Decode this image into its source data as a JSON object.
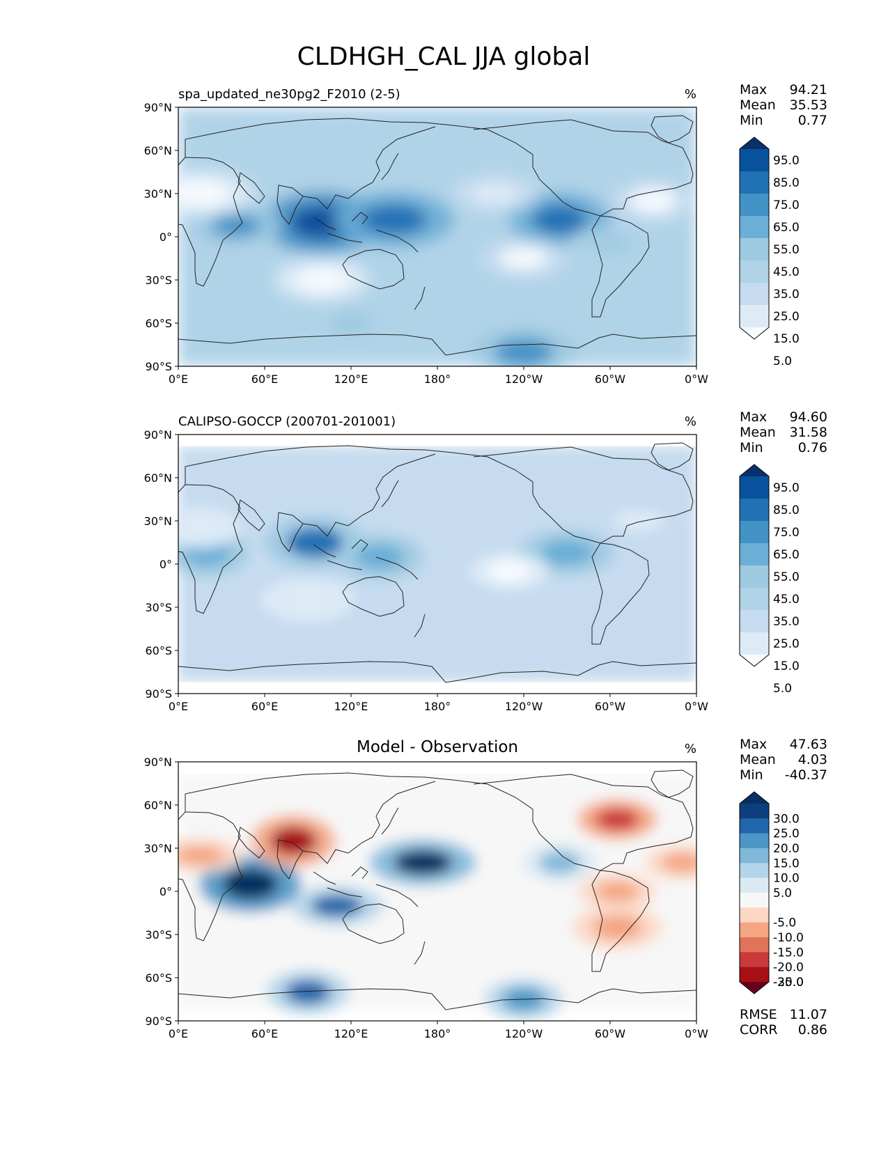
{
  "figure_title": "CLDHGH_CAL JJA global",
  "chart_data": [
    {
      "type": "heatmap",
      "title": "spa_updated_ne30pg2_F2010 (2-5)",
      "units": "%",
      "projection": "PlateCarree, central longitude 180",
      "xlim": [
        0,
        360
      ],
      "ylim": [
        -90,
        90
      ],
      "x_tick_labels": [
        "0°E",
        "60°E",
        "120°E",
        "180°",
        "120°W",
        "60°W",
        "0°W"
      ],
      "y_tick_labels": [
        "90°N",
        "60°N",
        "30°N",
        "0°",
        "30°S",
        "60°S",
        "90°S"
      ],
      "stats": {
        "max_label": "Max",
        "max": "94.21",
        "mean_label": "Mean",
        "mean": "35.53",
        "min_label": "Min",
        "min": "0.77"
      },
      "colorbar": {
        "extend": "both",
        "levels": [
          0,
          10,
          20,
          30,
          40,
          50,
          60,
          70,
          80,
          90,
          100
        ],
        "tick_labels": [
          "95.0",
          "85.0",
          "75.0",
          "65.0",
          "55.0",
          "45.0",
          "35.0",
          "25.0",
          "15.0",
          "5.0"
        ],
        "colors": [
          "#f7fbff",
          "#deebf7",
          "#c6dbef",
          "#b1d3e8",
          "#9ecae1",
          "#6baed6",
          "#4292c6",
          "#2171b5",
          "#08519c",
          "#08306b"
        ]
      },
      "field_features": [
        {
          "lon": 100,
          "lat": 10,
          "value": 88
        },
        {
          "lon": 150,
          "lat": 12,
          "value": 70
        },
        {
          "lon": 40,
          "lat": 8,
          "value": 65
        },
        {
          "lon": 265,
          "lat": 12,
          "value": 72
        },
        {
          "lon": 240,
          "lat": -15,
          "value": 8
        },
        {
          "lon": 100,
          "lat": -30,
          "value": 6
        },
        {
          "lon": 15,
          "lat": 30,
          "value": 6
        },
        {
          "lon": 330,
          "lat": 25,
          "value": 8
        },
        {
          "lon": 220,
          "lat": 30,
          "value": 10
        },
        {
          "lon": 240,
          "lat": -80,
          "value": 60
        },
        {
          "lon": 120,
          "lat": -60,
          "value": 45
        },
        {
          "lon": 300,
          "lat": -5,
          "value": 40
        }
      ],
      "background_value": 32
    },
    {
      "type": "heatmap",
      "title": "CALIPSO-GOCCP (200701-201001)",
      "units": "%",
      "projection": "PlateCarree, central longitude 180",
      "xlim": [
        0,
        360
      ],
      "ylim": [
        -90,
        90
      ],
      "data_lat_range": [
        -82,
        82
      ],
      "x_tick_labels": [
        "0°E",
        "60°E",
        "120°E",
        "180°",
        "120°W",
        "60°W",
        "0°W"
      ],
      "y_tick_labels": [
        "90°N",
        "60°N",
        "30°N",
        "0°",
        "30°S",
        "60°S",
        "90°S"
      ],
      "stats": {
        "max_label": "Max",
        "max": "94.60",
        "mean_label": "Mean",
        "mean": "31.58",
        "min_label": "Min",
        "min": "0.76"
      },
      "colorbar": {
        "extend": "both",
        "levels": [
          0,
          10,
          20,
          30,
          40,
          50,
          60,
          70,
          80,
          90,
          100
        ],
        "tick_labels": [
          "95.0",
          "85.0",
          "75.0",
          "65.0",
          "55.0",
          "45.0",
          "35.0",
          "25.0",
          "15.0",
          "5.0"
        ],
        "colors": [
          "#f7fbff",
          "#deebf7",
          "#c6dbef",
          "#b1d3e8",
          "#9ecae1",
          "#6baed6",
          "#4292c6",
          "#2171b5",
          "#08519c",
          "#08306b"
        ]
      },
      "field_features": [
        {
          "lon": 95,
          "lat": 15,
          "value": 70
        },
        {
          "lon": 140,
          "lat": 5,
          "value": 58
        },
        {
          "lon": 20,
          "lat": 8,
          "value": 55
        },
        {
          "lon": 270,
          "lat": 8,
          "value": 58
        },
        {
          "lon": 230,
          "lat": -5,
          "value": 6
        },
        {
          "lon": 90,
          "lat": -25,
          "value": 10
        },
        {
          "lon": 15,
          "lat": 25,
          "value": 10
        },
        {
          "lon": 320,
          "lat": 30,
          "value": 15
        }
      ],
      "background_value": 28
    },
    {
      "type": "heatmap",
      "title": "Model - Observation",
      "units": "%",
      "projection": "PlateCarree, central longitude 180",
      "xlim": [
        0,
        360
      ],
      "ylim": [
        -90,
        90
      ],
      "data_lat_range": [
        -82,
        82
      ],
      "x_tick_labels": [
        "0°E",
        "60°E",
        "120°E",
        "180°",
        "120°W",
        "60°W",
        "0°W"
      ],
      "y_tick_labels": [
        "90°N",
        "60°N",
        "30°N",
        "0°",
        "30°S",
        "60°S",
        "90°S"
      ],
      "stats": {
        "max_label": "Max",
        "max": "47.63",
        "mean_label": "Mean",
        "mean": "4.03",
        "min_label": "Min",
        "min": "-40.37"
      },
      "extra_stats": {
        "rmse_label": "RMSE",
        "rmse": "11.07",
        "corr_label": "CORR",
        "corr": "0.86"
      },
      "colorbar": {
        "extend": "both",
        "levels": [
          -35,
          -30,
          -25,
          -20,
          -15,
          -10,
          -5,
          5,
          10,
          15,
          20,
          25,
          30,
          35
        ],
        "tick_labels": [
          "30.0",
          "25.0",
          "20.0",
          "15.0",
          "10.0",
          "5.0",
          "-5.0",
          "-10.0",
          "-15.0",
          "-20.0",
          "-25.0",
          "-30.0"
        ],
        "colors": [
          "#67001f",
          "#a50f15",
          "#cb3a3a",
          "#e0735a",
          "#f4a582",
          "#fbd7c4",
          "#f7f7f7",
          "#dbe9f3",
          "#b4d5e9",
          "#80b8da",
          "#4c96c6",
          "#2166ac",
          "#0d3f7d",
          "#053061"
        ]
      },
      "field_features": [
        {
          "lon": 50,
          "lat": 5,
          "value": 40
        },
        {
          "lon": 170,
          "lat": 20,
          "value": 38
        },
        {
          "lon": 110,
          "lat": -10,
          "value": 28
        },
        {
          "lon": 90,
          "lat": -70,
          "value": 26
        },
        {
          "lon": 240,
          "lat": -75,
          "value": 24
        },
        {
          "lon": 80,
          "lat": 35,
          "value": -30
        },
        {
          "lon": 305,
          "lat": 50,
          "value": -24
        },
        {
          "lon": 15,
          "lat": 25,
          "value": -14
        },
        {
          "lon": 350,
          "lat": 20,
          "value": -12
        },
        {
          "lon": 305,
          "lat": -25,
          "value": -15
        },
        {
          "lon": 305,
          "lat": 0,
          "value": -12
        },
        {
          "lon": 265,
          "lat": 20,
          "value": 18
        }
      ],
      "background_value": 0
    }
  ]
}
